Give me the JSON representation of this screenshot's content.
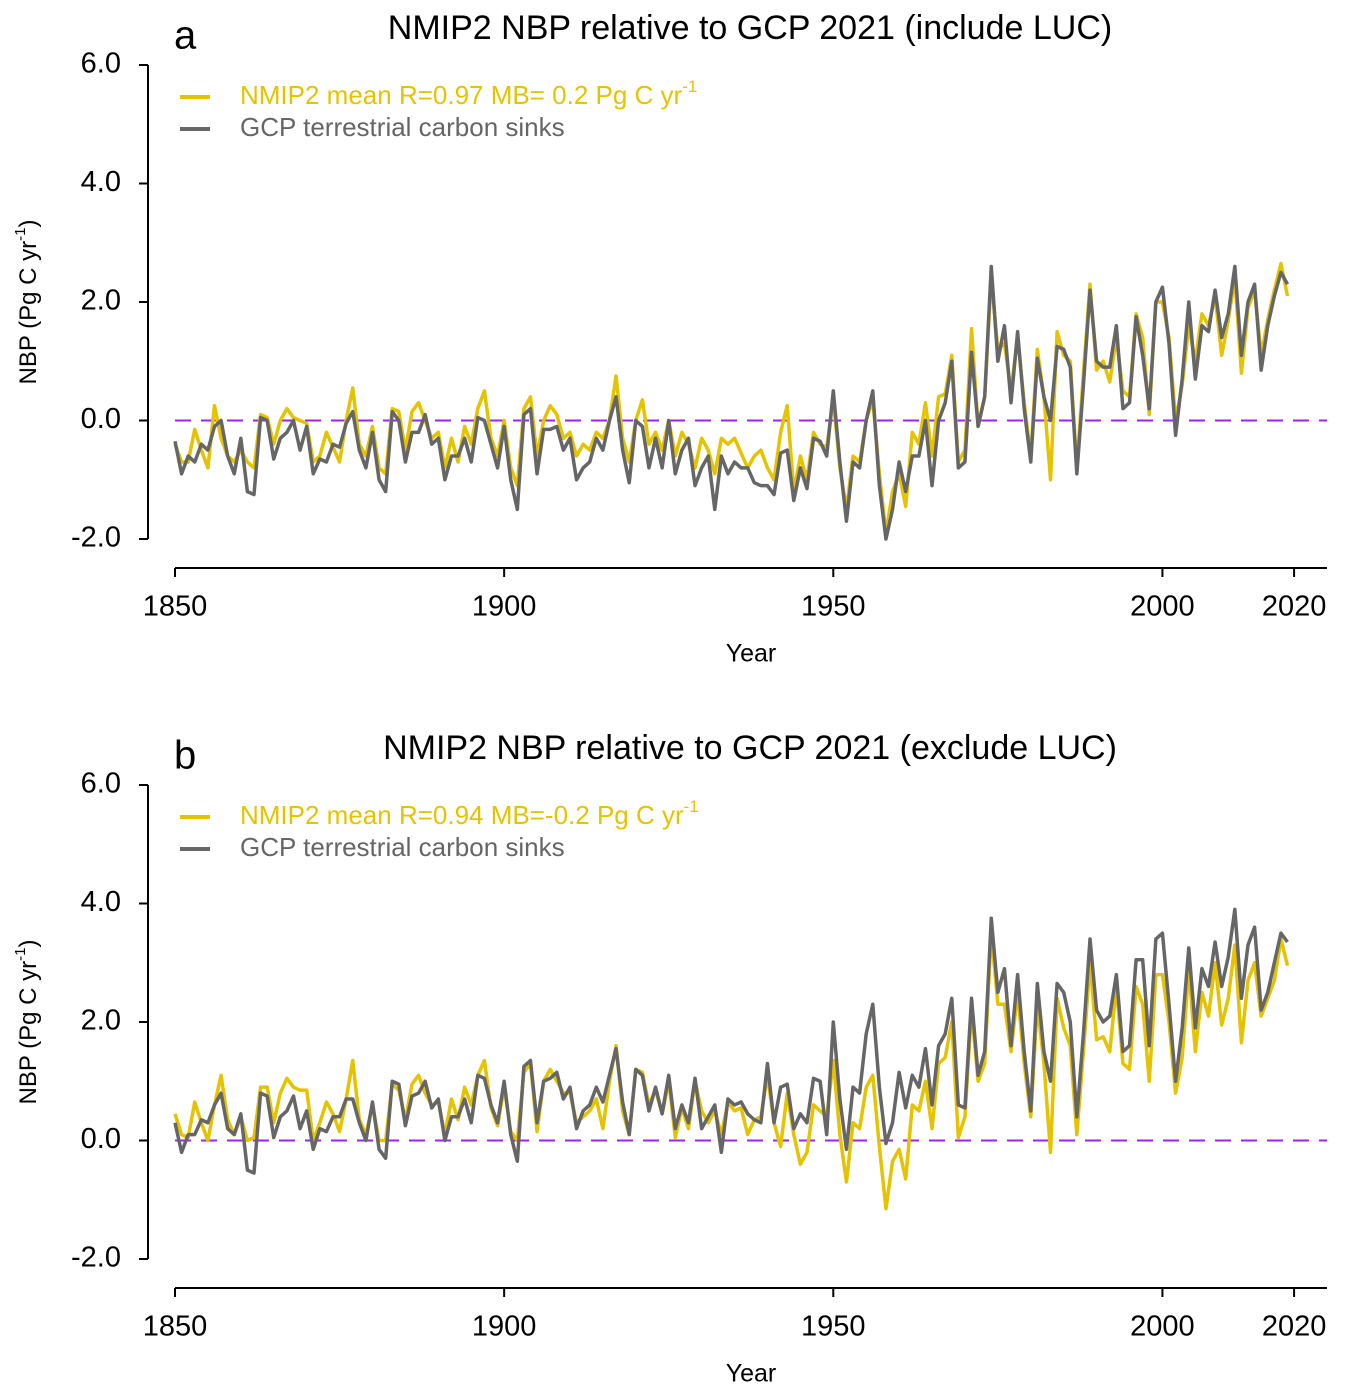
{
  "chart_data": [
    {
      "type": "line",
      "panel_label": "a",
      "title": "NMIP2 NBP relative to GCP 2021 (include LUC)",
      "xlabel": "Year",
      "ylabel": [
        "NBP (Pg C yr",
        "-1",
        ")"
      ],
      "xlim": [
        1850,
        2025
      ],
      "xticks": [
        1850,
        1900,
        1950,
        2000,
        2020
      ],
      "ylim": [
        -2,
        6
      ],
      "yticks": [
        {
          "value": -2,
          "label": "-2.0"
        },
        {
          "value": 0,
          "label": "0.0"
        },
        {
          "value": 2,
          "label": "2.0"
        },
        {
          "value": 4,
          "label": "4.0"
        },
        {
          "value": 6,
          "label": "6.0"
        }
      ],
      "reference_line": {
        "value": 0,
        "color": "#a020f0"
      },
      "x": [
        1850,
        1851,
        1852,
        1853,
        1854,
        1855,
        1856,
        1857,
        1858,
        1859,
        1860,
        1861,
        1862,
        1863,
        1864,
        1865,
        1866,
        1867,
        1868,
        1869,
        1870,
        1871,
        1872,
        1873,
        1874,
        1875,
        1876,
        1877,
        1878,
        1879,
        1880,
        1881,
        1882,
        1883,
        1884,
        1885,
        1886,
        1887,
        1888,
        1889,
        1890,
        1891,
        1892,
        1893,
        1894,
        1895,
        1896,
        1897,
        1898,
        1899,
        1900,
        1901,
        1902,
        1903,
        1904,
        1905,
        1906,
        1907,
        1908,
        1909,
        1910,
        1911,
        1912,
        1913,
        1914,
        1915,
        1916,
        1917,
        1918,
        1919,
        1920,
        1921,
        1922,
        1923,
        1924,
        1925,
        1926,
        1927,
        1928,
        1929,
        1930,
        1931,
        1932,
        1933,
        1934,
        1935,
        1936,
        1937,
        1938,
        1939,
        1940,
        1941,
        1942,
        1943,
        1944,
        1945,
        1946,
        1947,
        1948,
        1949,
        1950,
        1951,
        1952,
        1953,
        1954,
        1955,
        1956,
        1957,
        1958,
        1959,
        1960,
        1961,
        1962,
        1963,
        1964,
        1965,
        1966,
        1967,
        1968,
        1969,
        1970,
        1971,
        1972,
        1973,
        1974,
        1975,
        1976,
        1977,
        1978,
        1979,
        1980,
        1981,
        1982,
        1983,
        1984,
        1985,
        1986,
        1987,
        1988,
        1989,
        1990,
        1991,
        1992,
        1993,
        1994,
        1995,
        1996,
        1997,
        1998,
        1999,
        2000,
        2001,
        2002,
        2003,
        2004,
        2005,
        2006,
        2007,
        2008,
        2009,
        2010,
        2011,
        2012,
        2013,
        2014,
        2015,
        2016,
        2017,
        2018,
        2019
      ],
      "series": [
        {
          "name": "NMIP2 mean R=0.97 MB= 0.2 Pg C yr",
          "name_sup": "-1",
          "color": "#e6c300",
          "values": [
            -0.4,
            -0.7,
            -0.7,
            -0.15,
            -0.5,
            -0.8,
            0.25,
            -0.3,
            -0.6,
            -0.7,
            -0.5,
            -0.7,
            -0.8,
            0.1,
            0.05,
            -0.4,
            0.0,
            0.2,
            0.05,
            0.0,
            -0.05,
            -0.7,
            -0.6,
            -0.2,
            -0.45,
            -0.7,
            0.0,
            0.55,
            -0.4,
            -0.6,
            -0.1,
            -0.8,
            -0.9,
            0.2,
            0.15,
            -0.5,
            0.15,
            0.3,
            0.0,
            -0.3,
            -0.2,
            -0.8,
            -0.3,
            -0.7,
            -0.1,
            -0.4,
            0.2,
            0.5,
            -0.3,
            -0.6,
            0.0,
            -0.8,
            -1.1,
            0.2,
            0.4,
            -0.6,
            0.0,
            0.25,
            0.1,
            -0.3,
            -0.2,
            -0.6,
            -0.4,
            -0.5,
            -0.2,
            -0.3,
            0.0,
            0.75,
            -0.3,
            -0.7,
            0.0,
            0.35,
            -0.4,
            -0.2,
            -0.5,
            0.0,
            -0.6,
            -0.2,
            -0.4,
            -0.8,
            -0.3,
            -0.5,
            -0.9,
            -0.3,
            -0.4,
            -0.3,
            -0.55,
            -0.8,
            -0.6,
            -0.5,
            -0.8,
            -1.0,
            -0.2,
            0.25,
            -1.2,
            -0.6,
            -1.0,
            -0.2,
            -0.4,
            -0.45,
            0.35,
            -0.8,
            -1.5,
            -0.6,
            -0.7,
            0.0,
            0.35,
            -0.9,
            -1.9,
            -1.2,
            -0.9,
            -1.45,
            -0.2,
            -0.4,
            0.3,
            -0.6,
            0.4,
            0.45,
            1.1,
            -0.7,
            -0.5,
            1.55,
            -0.1,
            0.4,
            2.4,
            1.2,
            1.3,
            0.5,
            1.4,
            0.3,
            -0.6,
            1.2,
            0.4,
            -1.0,
            1.5,
            1.1,
            1.0,
            -0.8,
            0.8,
            2.3,
            0.85,
            1.0,
            0.65,
            1.4,
            0.5,
            0.4,
            1.8,
            1.4,
            0.1,
            2.0,
            2.0,
            1.4,
            0.0,
            0.6,
            1.6,
            1.0,
            1.8,
            1.6,
            2.1,
            1.1,
            1.7,
            2.4,
            0.8,
            1.9,
            2.2,
            1.1,
            1.7,
            2.2,
            2.65,
            2.1
          ]
        },
        {
          "name": "GCP terrestrial carbon sinks",
          "color": "#666666",
          "values": [
            -0.35,
            -0.9,
            -0.6,
            -0.7,
            -0.4,
            -0.5,
            -0.1,
            0.0,
            -0.6,
            -0.9,
            -0.3,
            -1.2,
            -1.25,
            0.05,
            0.0,
            -0.65,
            -0.3,
            -0.2,
            0.0,
            -0.5,
            -0.1,
            -0.9,
            -0.65,
            -0.7,
            -0.4,
            -0.45,
            -0.05,
            0.15,
            -0.5,
            -0.8,
            -0.2,
            -1.0,
            -1.2,
            0.15,
            0.0,
            -0.7,
            -0.2,
            -0.2,
            0.1,
            -0.4,
            -0.3,
            -1.0,
            -0.6,
            -0.6,
            -0.3,
            -0.7,
            0.05,
            0.0,
            -0.4,
            -0.8,
            -0.1,
            -1.0,
            -1.5,
            0.1,
            0.2,
            -0.9,
            -0.15,
            -0.15,
            -0.1,
            -0.5,
            -0.3,
            -1.0,
            -0.8,
            -0.7,
            -0.3,
            -0.5,
            0.0,
            0.4,
            -0.5,
            -1.05,
            0.0,
            -0.1,
            -0.8,
            -0.3,
            -0.8,
            0.0,
            -0.9,
            -0.5,
            -0.3,
            -1.1,
            -0.8,
            -0.6,
            -1.5,
            -0.6,
            -0.9,
            -0.7,
            -0.8,
            -0.8,
            -1.05,
            -1.1,
            -1.1,
            -1.25,
            -0.55,
            -0.5,
            -1.35,
            -0.8,
            -1.15,
            -0.3,
            -0.35,
            -0.6,
            0.5,
            -0.7,
            -1.7,
            -0.7,
            -0.8,
            0.0,
            0.5,
            -1.1,
            -2.0,
            -1.5,
            -0.7,
            -1.2,
            -0.6,
            -0.6,
            0.0,
            -1.1,
            0.0,
            0.3,
            1.0,
            -0.8,
            -0.7,
            1.15,
            -0.1,
            0.4,
            2.6,
            1.0,
            1.6,
            0.3,
            1.5,
            0.2,
            -0.7,
            1.05,
            0.4,
            0.0,
            1.25,
            1.2,
            0.9,
            -0.9,
            0.6,
            2.2,
            1.0,
            0.9,
            0.9,
            1.6,
            0.2,
            0.3,
            1.75,
            1.1,
            0.2,
            2.0,
            2.25,
            1.3,
            -0.25,
            0.7,
            2.0,
            0.7,
            1.6,
            1.5,
            2.2,
            1.4,
            1.8,
            2.6,
            1.1,
            2.0,
            2.3,
            0.85,
            1.6,
            2.1,
            2.5,
            2.3
          ]
        }
      ]
    },
    {
      "type": "line",
      "panel_label": "b",
      "title": "NMIP2 NBP relative to GCP 2021 (exclude LUC)",
      "xlabel": "Year",
      "ylabel": [
        "NBP (Pg C yr",
        "-1",
        ")"
      ],
      "xlim": [
        1850,
        2025
      ],
      "xticks": [
        1850,
        1900,
        1950,
        2000,
        2020
      ],
      "ylim": [
        -2,
        6
      ],
      "yticks": [
        {
          "value": -2,
          "label": "-2.0"
        },
        {
          "value": 0,
          "label": "0.0"
        },
        {
          "value": 2,
          "label": "2.0"
        },
        {
          "value": 4,
          "label": "4.0"
        },
        {
          "value": 6,
          "label": "6.0"
        }
      ],
      "reference_line": {
        "value": 0,
        "color": "#a020f0"
      },
      "x": [
        1850,
        1851,
        1852,
        1853,
        1854,
        1855,
        1856,
        1857,
        1858,
        1859,
        1860,
        1861,
        1862,
        1863,
        1864,
        1865,
        1866,
        1867,
        1868,
        1869,
        1870,
        1871,
        1872,
        1873,
        1874,
        1875,
        1876,
        1877,
        1878,
        1879,
        1880,
        1881,
        1882,
        1883,
        1884,
        1885,
        1886,
        1887,
        1888,
        1889,
        1890,
        1891,
        1892,
        1893,
        1894,
        1895,
        1896,
        1897,
        1898,
        1899,
        1900,
        1901,
        1902,
        1903,
        1904,
        1905,
        1906,
        1907,
        1908,
        1909,
        1910,
        1911,
        1912,
        1913,
        1914,
        1915,
        1916,
        1917,
        1918,
        1919,
        1920,
        1921,
        1922,
        1923,
        1924,
        1925,
        1926,
        1927,
        1928,
        1929,
        1930,
        1931,
        1932,
        1933,
        1934,
        1935,
        1936,
        1937,
        1938,
        1939,
        1940,
        1941,
        1942,
        1943,
        1944,
        1945,
        1946,
        1947,
        1948,
        1949,
        1950,
        1951,
        1952,
        1953,
        1954,
        1955,
        1956,
        1957,
        1958,
        1959,
        1960,
        1961,
        1962,
        1963,
        1964,
        1965,
        1966,
        1967,
        1968,
        1969,
        1970,
        1971,
        1972,
        1973,
        1974,
        1975,
        1976,
        1977,
        1978,
        1979,
        1980,
        1981,
        1982,
        1983,
        1984,
        1985,
        1986,
        1987,
        1988,
        1989,
        1990,
        1991,
        1992,
        1993,
        1994,
        1995,
        1996,
        1997,
        1998,
        1999,
        2000,
        2001,
        2002,
        2003,
        2004,
        2005,
        2006,
        2007,
        2008,
        2009,
        2010,
        2011,
        2012,
        2013,
        2014,
        2015,
        2016,
        2017,
        2018,
        2019
      ],
      "series": [
        {
          "name": "NMIP2 mean R=0.94 MB=-0.2 Pg C yr",
          "name_sup": "-1",
          "color": "#e6c300",
          "values": [
            0.45,
            0.1,
            0.05,
            0.65,
            0.3,
            0.0,
            0.6,
            1.1,
            0.35,
            0.1,
            0.4,
            0.0,
            0.05,
            0.9,
            0.9,
            0.3,
            0.8,
            1.05,
            0.9,
            0.85,
            0.85,
            0.0,
            0.3,
            0.65,
            0.45,
            0.15,
            0.7,
            1.35,
            0.35,
            0.1,
            0.6,
            0.0,
            0.0,
            0.95,
            0.85,
            0.35,
            0.95,
            1.1,
            0.8,
            0.6,
            0.65,
            0.1,
            0.7,
            0.35,
            0.9,
            0.6,
            1.1,
            1.35,
            0.55,
            0.25,
            0.9,
            0.15,
            0.0,
            1.15,
            1.3,
            0.15,
            1.0,
            1.2,
            1.0,
            0.8,
            0.8,
            0.3,
            0.4,
            0.5,
            0.7,
            0.2,
            1.0,
            1.6,
            0.5,
            0.1,
            1.2,
            1.15,
            0.6,
            0.85,
            0.45,
            1.0,
            0.05,
            0.55,
            0.2,
            1.0,
            0.5,
            0.3,
            0.5,
            0.1,
            0.65,
            0.5,
            0.55,
            0.1,
            0.35,
            0.4,
            1.1,
            0.3,
            -0.1,
            0.8,
            0.1,
            -0.4,
            -0.2,
            0.6,
            0.5,
            0.4,
            1.35,
            0.1,
            -0.7,
            0.3,
            0.2,
            0.9,
            1.1,
            -0.1,
            -1.15,
            -0.35,
            -0.15,
            -0.65,
            0.6,
            0.5,
            1.0,
            0.2,
            1.3,
            1.4,
            2.0,
            0.05,
            0.4,
            2.2,
            1.0,
            1.3,
            3.5,
            2.3,
            2.3,
            1.5,
            2.5,
            1.3,
            0.4,
            2.3,
            1.3,
            -0.2,
            2.4,
            1.9,
            1.6,
            0.1,
            1.5,
            3.0,
            1.7,
            1.75,
            1.5,
            2.6,
            1.3,
            1.2,
            2.6,
            2.3,
            1.0,
            2.8,
            2.8,
            2.0,
            0.8,
            1.4,
            2.9,
            1.5,
            2.5,
            2.1,
            3.0,
            1.95,
            2.4,
            3.3,
            1.65,
            2.7,
            3.0,
            2.1,
            2.4,
            2.7,
            3.4,
            2.95
          ]
        },
        {
          "name": "GCP terrestrial carbon sinks",
          "color": "#666666",
          "values": [
            0.3,
            -0.2,
            0.1,
            0.1,
            0.35,
            0.3,
            0.6,
            0.8,
            0.2,
            0.1,
            0.45,
            -0.5,
            -0.55,
            0.8,
            0.75,
            0.05,
            0.4,
            0.5,
            0.75,
            0.2,
            0.5,
            -0.15,
            0.2,
            0.15,
            0.4,
            0.4,
            0.7,
            0.7,
            0.3,
            0.0,
            0.65,
            -0.15,
            -0.3,
            1.0,
            0.95,
            0.25,
            0.75,
            0.8,
            1.0,
            0.55,
            0.7,
            0.0,
            0.4,
            0.4,
            0.7,
            0.3,
            1.1,
            1.05,
            0.6,
            0.3,
            1.0,
            0.1,
            -0.35,
            1.25,
            1.35,
            0.3,
            1.0,
            1.05,
            1.15,
            0.7,
            0.9,
            0.2,
            0.5,
            0.6,
            0.9,
            0.65,
            1.1,
            1.55,
            0.65,
            0.1,
            1.2,
            1.1,
            0.5,
            0.9,
            0.45,
            1.1,
            0.2,
            0.6,
            0.3,
            1.05,
            0.2,
            0.4,
            0.6,
            -0.2,
            0.7,
            0.6,
            0.65,
            0.45,
            0.35,
            0.3,
            1.3,
            0.3,
            0.9,
            0.95,
            0.2,
            0.45,
            0.3,
            1.05,
            1.0,
            0.1,
            2.0,
            0.7,
            -0.15,
            0.9,
            0.8,
            1.8,
            2.3,
            0.9,
            -0.05,
            0.3,
            1.15,
            0.55,
            1.1,
            0.9,
            1.55,
            0.6,
            1.6,
            1.8,
            2.4,
            0.6,
            0.55,
            2.4,
            1.1,
            1.5,
            3.75,
            2.5,
            2.9,
            1.6,
            2.8,
            1.5,
            0.5,
            2.65,
            1.5,
            1.0,
            2.65,
            2.5,
            2.0,
            0.4,
            1.8,
            3.4,
            2.2,
            2.0,
            2.1,
            2.8,
            1.5,
            1.6,
            3.05,
            3.05,
            1.6,
            3.4,
            3.5,
            2.3,
            1.0,
            1.9,
            3.25,
            1.9,
            2.9,
            2.6,
            3.35,
            2.6,
            3.1,
            3.9,
            2.4,
            3.3,
            3.6,
            2.2,
            2.5,
            3.0,
            3.5,
            3.35
          ]
        }
      ]
    }
  ]
}
